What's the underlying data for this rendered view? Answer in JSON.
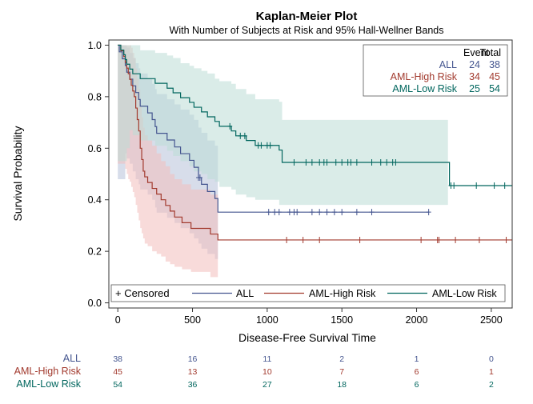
{
  "chart_data": {
    "type": "line",
    "title": "Kaplan-Meier Plot",
    "subtitle": "With Number of Subjects at Risk and 95% Hall-Wellner Bands",
    "xlabel": "Disease-Free Survival Time",
    "ylabel": "Survival Probability",
    "xlim": [
      -60,
      2640
    ],
    "ylim": [
      -0.02,
      1.02
    ],
    "x_ticks": [
      0,
      500,
      1000,
      1500,
      2000,
      2500
    ],
    "y_ticks": [
      0.0,
      0.2,
      0.4,
      0.6,
      0.8,
      1.0
    ],
    "x_tick_labels": [
      "0",
      "500",
      "1000",
      "1500",
      "2000",
      "2500"
    ],
    "y_tick_labels": [
      "0.0",
      "0.2",
      "0.4",
      "0.6",
      "0.8",
      "1.0"
    ],
    "grid": false,
    "legend": {
      "placement": "bottom-inside",
      "censored_label": "+ Censored",
      "entries": [
        "ALL",
        "AML-High Risk",
        "AML-Low Risk"
      ]
    },
    "inset_table": {
      "placement": "top-right",
      "headers": [
        "Event",
        "Total"
      ],
      "rows": [
        {
          "name": "ALL",
          "event": "24",
          "total": "38",
          "color": "#44558f"
        },
        {
          "name": "AML-High Risk",
          "event": "34",
          "total": "45",
          "color": "#a23a2e"
        },
        {
          "name": "AML-Low Risk",
          "event": "25",
          "total": "54",
          "color": "#01665e"
        }
      ]
    },
    "at_risk": {
      "times": [
        0,
        500,
        1000,
        1500,
        2000,
        2500
      ],
      "rows": [
        {
          "name": "ALL",
          "counts": [
            "38",
            "16",
            "11",
            "2",
            "1",
            "0"
          ],
          "color": "#44558f"
        },
        {
          "name": "AML-High Risk",
          "counts": [
            "45",
            "13",
            "10",
            "7",
            "6",
            "1"
          ],
          "color": "#a23a2e"
        },
        {
          "name": "AML-Low Risk",
          "counts": [
            "54",
            "36",
            "27",
            "18",
            "6",
            "2"
          ],
          "color": "#01665e"
        }
      ]
    },
    "series": [
      {
        "name": "ALL",
        "color": "#44558f",
        "band_color": "#b7c1d9",
        "steps": [
          [
            0,
            1.0
          ],
          [
            10,
            0.974
          ],
          [
            30,
            0.947
          ],
          [
            50,
            0.921
          ],
          [
            60,
            0.895
          ],
          [
            80,
            0.868
          ],
          [
            100,
            0.842
          ],
          [
            120,
            0.816
          ],
          [
            140,
            0.789
          ],
          [
            150,
            0.763
          ],
          [
            200,
            0.737
          ],
          [
            230,
            0.711
          ],
          [
            250,
            0.684
          ],
          [
            260,
            0.658
          ],
          [
            330,
            0.632
          ],
          [
            380,
            0.605
          ],
          [
            420,
            0.579
          ],
          [
            480,
            0.553
          ],
          [
            510,
            0.526
          ],
          [
            540,
            0.486
          ],
          [
            560,
            0.46
          ],
          [
            600,
            0.432
          ],
          [
            650,
            0.405
          ],
          [
            670,
            0.352
          ],
          [
            2081,
            0.352
          ]
        ],
        "censored": [
          540,
          550,
          1010,
          1050,
          1080,
          1150,
          1180,
          1200,
          1300,
          1350,
          1400,
          1450,
          1500,
          1600,
          1700,
          2081
        ],
        "band_upper": [
          [
            0,
            1.0
          ],
          [
            10,
            1.0
          ],
          [
            30,
            1.0
          ],
          [
            50,
            1.0
          ],
          [
            60,
            0.99
          ],
          [
            80,
            0.97
          ],
          [
            100,
            0.95
          ],
          [
            120,
            0.93
          ],
          [
            140,
            0.91
          ],
          [
            150,
            0.89
          ],
          [
            200,
            0.87
          ],
          [
            230,
            0.85
          ],
          [
            250,
            0.83
          ],
          [
            260,
            0.81
          ],
          [
            330,
            0.79
          ],
          [
            380,
            0.77
          ],
          [
            420,
            0.75
          ],
          [
            480,
            0.73
          ],
          [
            510,
            0.71
          ],
          [
            540,
            0.68
          ],
          [
            560,
            0.66
          ],
          [
            600,
            0.63
          ],
          [
            650,
            0.61
          ],
          [
            670,
            0.61
          ]
        ],
        "band_lower": [
          [
            0,
            0.48
          ],
          [
            10,
            0.48
          ],
          [
            30,
            0.48
          ],
          [
            50,
            0.58
          ],
          [
            60,
            0.56
          ],
          [
            80,
            0.54
          ],
          [
            100,
            0.51
          ],
          [
            120,
            0.48
          ],
          [
            140,
            0.46
          ],
          [
            150,
            0.44
          ],
          [
            200,
            0.42
          ],
          [
            230,
            0.4
          ],
          [
            250,
            0.37
          ],
          [
            260,
            0.35
          ],
          [
            330,
            0.33
          ],
          [
            380,
            0.31
          ],
          [
            420,
            0.29
          ],
          [
            480,
            0.27
          ],
          [
            510,
            0.25
          ],
          [
            540,
            0.23
          ],
          [
            560,
            0.21
          ],
          [
            600,
            0.19
          ],
          [
            650,
            0.17
          ],
          [
            670,
            0.17
          ]
        ]
      },
      {
        "name": "AML-High Risk",
        "color": "#a23a2e",
        "band_color": "#f2bdbb",
        "steps": [
          [
            0,
            1.0
          ],
          [
            20,
            0.978
          ],
          [
            40,
            0.956
          ],
          [
            50,
            0.933
          ],
          [
            60,
            0.911
          ],
          [
            70,
            0.889
          ],
          [
            80,
            0.867
          ],
          [
            90,
            0.844
          ],
          [
            100,
            0.822
          ],
          [
            110,
            0.8
          ],
          [
            120,
            0.756
          ],
          [
            130,
            0.711
          ],
          [
            140,
            0.667
          ],
          [
            150,
            0.6
          ],
          [
            160,
            0.556
          ],
          [
            170,
            0.511
          ],
          [
            180,
            0.489
          ],
          [
            200,
            0.467
          ],
          [
            230,
            0.444
          ],
          [
            260,
            0.422
          ],
          [
            290,
            0.4
          ],
          [
            320,
            0.378
          ],
          [
            350,
            0.356
          ],
          [
            380,
            0.333
          ],
          [
            430,
            0.311
          ],
          [
            490,
            0.289
          ],
          [
            620,
            0.267
          ],
          [
            670,
            0.244
          ],
          [
            2640,
            0.244
          ]
        ],
        "censored": [
          1130,
          1240,
          1350,
          1620,
          2030,
          2140,
          2150,
          2260,
          2420,
          2600
        ],
        "band_upper": [
          [
            0,
            1.0
          ],
          [
            20,
            1.0
          ],
          [
            40,
            1.0
          ],
          [
            50,
            1.0
          ],
          [
            60,
            1.0
          ],
          [
            70,
            1.0
          ],
          [
            80,
            1.0
          ],
          [
            90,
            0.99
          ],
          [
            100,
            0.97
          ],
          [
            110,
            0.95
          ],
          [
            120,
            0.91
          ],
          [
            130,
            0.87
          ],
          [
            140,
            0.83
          ],
          [
            150,
            0.76
          ],
          [
            160,
            0.72
          ],
          [
            170,
            0.68
          ],
          [
            180,
            0.65
          ],
          [
            200,
            0.63
          ],
          [
            230,
            0.61
          ],
          [
            260,
            0.58
          ],
          [
            290,
            0.55
          ],
          [
            320,
            0.53
          ],
          [
            350,
            0.5
          ],
          [
            380,
            0.48
          ],
          [
            430,
            0.46
          ],
          [
            490,
            0.44
          ],
          [
            620,
            0.42
          ],
          [
            670,
            0.42
          ]
        ],
        "band_lower": [
          [
            0,
            0.54
          ],
          [
            20,
            0.54
          ],
          [
            40,
            0.54
          ],
          [
            50,
            0.52
          ],
          [
            60,
            0.5
          ],
          [
            70,
            0.48
          ],
          [
            80,
            0.47
          ],
          [
            90,
            0.45
          ],
          [
            100,
            0.43
          ],
          [
            110,
            0.41
          ],
          [
            120,
            0.38
          ],
          [
            130,
            0.35
          ],
          [
            140,
            0.32
          ],
          [
            150,
            0.29
          ],
          [
            160,
            0.27
          ],
          [
            170,
            0.25
          ],
          [
            180,
            0.23
          ],
          [
            200,
            0.22
          ],
          [
            230,
            0.2
          ],
          [
            260,
            0.19
          ],
          [
            290,
            0.18
          ],
          [
            320,
            0.16
          ],
          [
            350,
            0.15
          ],
          [
            380,
            0.14
          ],
          [
            430,
            0.13
          ],
          [
            490,
            0.12
          ],
          [
            620,
            0.1
          ],
          [
            670,
            0.1
          ]
        ]
      },
      {
        "name": "AML-Low Risk",
        "color": "#01665e",
        "band_color": "#bcdcd6",
        "steps": [
          [
            0,
            1.0
          ],
          [
            20,
            0.981
          ],
          [
            40,
            0.963
          ],
          [
            50,
            0.944
          ],
          [
            60,
            0.926
          ],
          [
            80,
            0.907
          ],
          [
            100,
            0.889
          ],
          [
            150,
            0.87
          ],
          [
            250,
            0.852
          ],
          [
            330,
            0.833
          ],
          [
            370,
            0.815
          ],
          [
            420,
            0.796
          ],
          [
            480,
            0.778
          ],
          [
            510,
            0.759
          ],
          [
            560,
            0.741
          ],
          [
            600,
            0.722
          ],
          [
            650,
            0.704
          ],
          [
            680,
            0.685
          ],
          [
            760,
            0.667
          ],
          [
            790,
            0.648
          ],
          [
            860,
            0.63
          ],
          [
            920,
            0.611
          ],
          [
            1080,
            0.593
          ],
          [
            1100,
            0.545
          ],
          [
            2210,
            0.545
          ],
          [
            2220,
            0.455
          ],
          [
            2640,
            0.455
          ]
        ],
        "censored": [
          750,
          820,
          850,
          940,
          960,
          1000,
          1020,
          1180,
          1260,
          1300,
          1350,
          1380,
          1400,
          1460,
          1500,
          1540,
          1560,
          1600,
          1700,
          1760,
          1800,
          1840,
          1860,
          2230,
          2250,
          2400,
          2520,
          2590
        ],
        "band_upper": [
          [
            0,
            1.0
          ],
          [
            20,
            1.0
          ],
          [
            40,
            1.0
          ],
          [
            50,
            1.0
          ],
          [
            60,
            1.0
          ],
          [
            80,
            1.0
          ],
          [
            100,
            1.0
          ],
          [
            150,
            0.98
          ],
          [
            250,
            0.97
          ],
          [
            330,
            0.96
          ],
          [
            370,
            0.95
          ],
          [
            420,
            0.93
          ],
          [
            480,
            0.92
          ],
          [
            510,
            0.91
          ],
          [
            560,
            0.9
          ],
          [
            600,
            0.89
          ],
          [
            650,
            0.87
          ],
          [
            680,
            0.86
          ],
          [
            760,
            0.85
          ],
          [
            790,
            0.83
          ],
          [
            860,
            0.81
          ],
          [
            920,
            0.79
          ],
          [
            1080,
            0.78
          ],
          [
            1100,
            0.71
          ],
          [
            2210,
            0.71
          ]
        ],
        "band_lower": [
          [
            0,
            0.55
          ],
          [
            20,
            0.55
          ],
          [
            40,
            0.55
          ],
          [
            50,
            0.55
          ],
          [
            60,
            0.6
          ],
          [
            80,
            0.67
          ],
          [
            100,
            0.65
          ],
          [
            150,
            0.63
          ],
          [
            250,
            0.61
          ],
          [
            330,
            0.59
          ],
          [
            370,
            0.57
          ],
          [
            420,
            0.55
          ],
          [
            480,
            0.53
          ],
          [
            510,
            0.51
          ],
          [
            560,
            0.5
          ],
          [
            600,
            0.48
          ],
          [
            650,
            0.47
          ],
          [
            680,
            0.45
          ],
          [
            760,
            0.44
          ],
          [
            790,
            0.42
          ],
          [
            860,
            0.41
          ],
          [
            920,
            0.4
          ],
          [
            1080,
            0.38
          ],
          [
            1100,
            0.38
          ],
          [
            2210,
            0.38
          ]
        ]
      }
    ]
  }
}
